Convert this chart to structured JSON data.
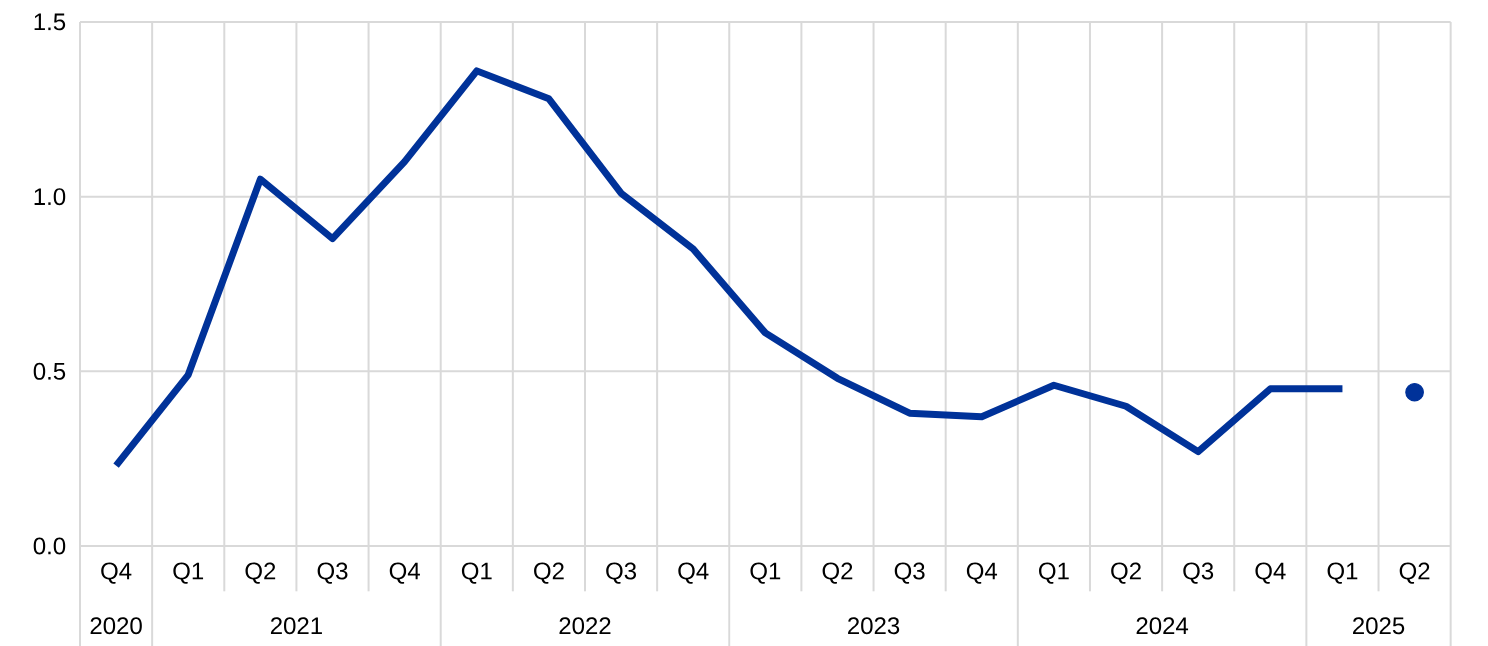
{
  "chart_data": {
    "type": "line",
    "categories": [
      "Q4",
      "Q1",
      "Q2",
      "Q3",
      "Q4",
      "Q1",
      "Q2",
      "Q3",
      "Q4",
      "Q1",
      "Q2",
      "Q3",
      "Q4",
      "Q1",
      "Q2",
      "Q3",
      "Q4",
      "Q1",
      "Q2"
    ],
    "series": [
      {
        "color": "#003299",
        "line_style": "solid",
        "marker": "none",
        "values": [
          0.23,
          0.49,
          1.05,
          0.88,
          1.1,
          1.36,
          1.28,
          1.01,
          0.85,
          0.61,
          0.48,
          0.38,
          0.37,
          0.46,
          0.4,
          0.27,
          0.45,
          0.45,
          null
        ]
      },
      {
        "type": "scatter",
        "color": "#003299",
        "marker": "circle",
        "values": [
          null,
          null,
          null,
          null,
          null,
          null,
          null,
          null,
          null,
          null,
          null,
          null,
          null,
          null,
          null,
          null,
          null,
          null,
          0.44
        ]
      }
    ],
    "ylim": [
      0,
      1.5
    ],
    "yticks": [
      {
        "value": 0,
        "label": "0.0"
      },
      {
        "value": 0.5,
        "label": "0.5"
      },
      {
        "value": 1,
        "label": "1.0"
      },
      {
        "value": 1.5,
        "label": "1.5"
      }
    ],
    "grid": true,
    "annotations": [
      "2020",
      "2021",
      "2022",
      "2023",
      "2024",
      "2025"
    ]
  }
}
